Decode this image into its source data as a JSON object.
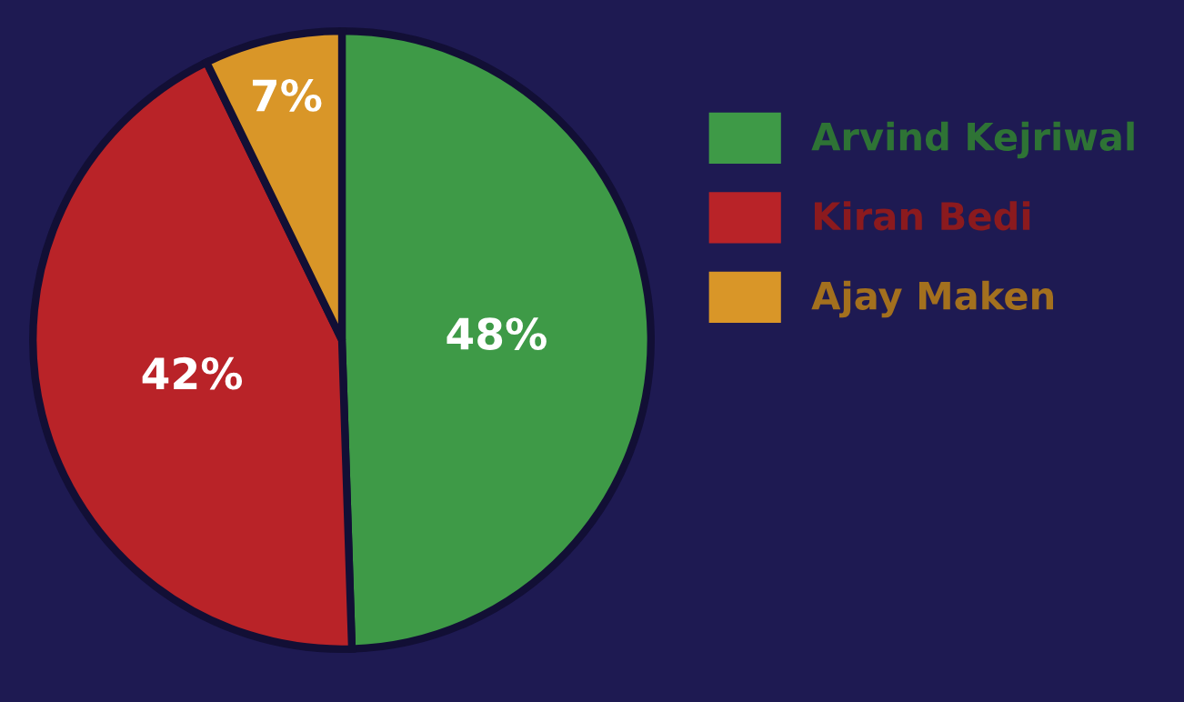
{
  "chart_data": {
    "type": "pie",
    "categories": [
      "Arvind Kejriwal",
      "Kiran Bedi",
      "Ajay Maken"
    ],
    "values": [
      48,
      42,
      7
    ],
    "colors": [
      "#3e9a47",
      "#b92328",
      "#d99628"
    ],
    "value_labels": [
      "48%",
      "42%",
      "7%"
    ],
    "legend": "right"
  }
}
